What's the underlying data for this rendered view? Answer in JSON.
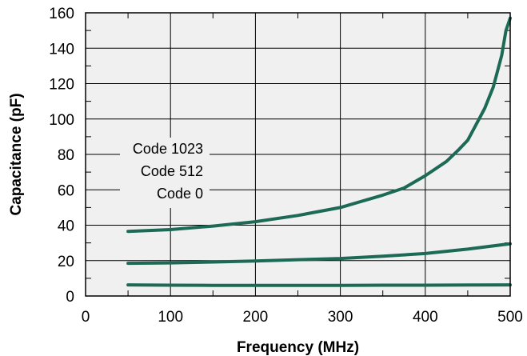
{
  "chart_data": {
    "type": "line",
    "xlabel": "Frequency (MHz)",
    "ylabel": "Capacitance (pF)",
    "xlim": [
      0,
      500
    ],
    "ylim": [
      0,
      160
    ],
    "x_ticks": [
      0,
      100,
      200,
      300,
      400,
      500
    ],
    "y_ticks": [
      0,
      20,
      40,
      60,
      80,
      100,
      120,
      140,
      160
    ],
    "x_tick_labels": [
      "0",
      "100",
      "200",
      "300",
      "400",
      "500"
    ],
    "y_tick_labels": [
      "0",
      "20",
      "40",
      "60",
      "80",
      "100",
      "120",
      "140",
      "160"
    ],
    "grid": true,
    "plot_background": "#f0f0f0",
    "line_color": "#1c6a55",
    "annotation_labels": [
      "Code 1023",
      "Code 512",
      "Code 0"
    ],
    "series": [
      {
        "name": "Code 1023",
        "x": [
          50,
          100,
          150,
          200,
          250,
          300,
          350,
          375,
          400,
          425,
          440,
          450,
          460,
          470,
          480,
          490,
          495,
          500
        ],
        "y": [
          36.5,
          37.5,
          39.5,
          42,
          45.5,
          50,
          57,
          61,
          68,
          76,
          83,
          88,
          97,
          106,
          118,
          136,
          150,
          157
        ]
      },
      {
        "name": "Code 512",
        "x": [
          50,
          100,
          150,
          200,
          250,
          300,
          350,
          400,
          450,
          500
        ],
        "y": [
          18.5,
          18.7,
          19.2,
          19.8,
          20.5,
          21.2,
          22.5,
          24,
          26.5,
          29.5
        ]
      },
      {
        "name": "Code 0",
        "x": [
          50,
          100,
          150,
          200,
          250,
          300,
          350,
          400,
          450,
          500
        ],
        "y": [
          6.3,
          6.1,
          6.0,
          6.0,
          6.0,
          6.0,
          6.1,
          6.1,
          6.2,
          6.3
        ]
      }
    ]
  }
}
